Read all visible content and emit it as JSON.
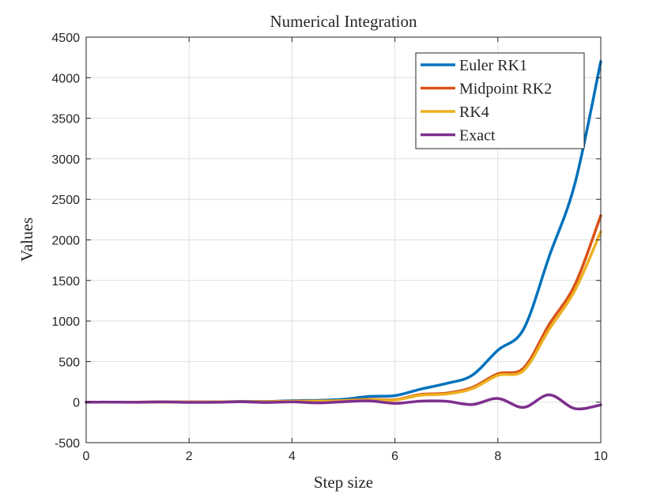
{
  "chart_data": {
    "type": "line",
    "title": "Numerical Integration",
    "xlabel": "Step size",
    "ylabel": "Values",
    "xlim": [
      0,
      10
    ],
    "ylim": [
      -500,
      4500
    ],
    "x_ticks": [
      "0",
      "2",
      "4",
      "6",
      "8",
      "10"
    ],
    "y_ticks": [
      "-500",
      "0",
      "500",
      "1000",
      "1500",
      "2000",
      "2500",
      "3000",
      "3500",
      "4000",
      "4500"
    ],
    "grid": true,
    "legend_position": "top-right",
    "series": [
      {
        "name": "Euler RK1",
        "color": "#0072bd",
        "points": [
          [
            0,
            0
          ],
          [
            0.5,
            0
          ],
          [
            1,
            0
          ],
          [
            1.5,
            2
          ],
          [
            2,
            2
          ],
          [
            2.5,
            2
          ],
          [
            3,
            8
          ],
          [
            3.5,
            8
          ],
          [
            4,
            18
          ],
          [
            4.5,
            22
          ],
          [
            5,
            35
          ],
          [
            5.5,
            70
          ],
          [
            6,
            80
          ],
          [
            6.5,
            160
          ],
          [
            7,
            230
          ],
          [
            7.5,
            330
          ],
          [
            8,
            640
          ],
          [
            8.5,
            900
          ],
          [
            9,
            1800
          ],
          [
            9.5,
            2700
          ],
          [
            10,
            4200
          ]
        ]
      },
      {
        "name": "Midpoint RK2",
        "color": "#d95319",
        "points": [
          [
            0,
            0
          ],
          [
            0.5,
            0
          ],
          [
            1,
            0
          ],
          [
            1.5,
            2
          ],
          [
            2,
            2
          ],
          [
            2.5,
            2
          ],
          [
            3,
            6
          ],
          [
            3.5,
            6
          ],
          [
            4,
            12
          ],
          [
            4.5,
            14
          ],
          [
            5,
            20
          ],
          [
            5.5,
            35
          ],
          [
            6,
            30
          ],
          [
            6.5,
            95
          ],
          [
            7,
            110
          ],
          [
            7.5,
            180
          ],
          [
            8,
            350
          ],
          [
            8.5,
            420
          ],
          [
            9,
            960
          ],
          [
            9.5,
            1450
          ],
          [
            10,
            2300
          ]
        ]
      },
      {
        "name": "RK4",
        "color": "#edb120",
        "points": [
          [
            0,
            0
          ],
          [
            0.5,
            0
          ],
          [
            1,
            0
          ],
          [
            1.5,
            2
          ],
          [
            2,
            2
          ],
          [
            2.5,
            2
          ],
          [
            3,
            6
          ],
          [
            3.5,
            6
          ],
          [
            4,
            10
          ],
          [
            4.5,
            12
          ],
          [
            5,
            18
          ],
          [
            5.5,
            30
          ],
          [
            6,
            25
          ],
          [
            6.5,
            85
          ],
          [
            7,
            100
          ],
          [
            7.5,
            165
          ],
          [
            8,
            330
          ],
          [
            8.5,
            390
          ],
          [
            9,
            900
          ],
          [
            9.5,
            1380
          ],
          [
            10,
            2100
          ]
        ]
      },
      {
        "name": "Exact",
        "color": "#7e2f8e",
        "points": [
          [
            0,
            0
          ],
          [
            0.5,
            0
          ],
          [
            1,
            -2
          ],
          [
            1.5,
            3
          ],
          [
            2,
            -3
          ],
          [
            2.5,
            -2
          ],
          [
            3,
            4
          ],
          [
            3.5,
            -4
          ],
          [
            4,
            3
          ],
          [
            4.5,
            -9
          ],
          [
            5,
            5
          ],
          [
            5.5,
            15
          ],
          [
            6,
            -15
          ],
          [
            6.5,
            12
          ],
          [
            7,
            10
          ],
          [
            7.5,
            -30
          ],
          [
            8,
            45
          ],
          [
            8.5,
            -65
          ],
          [
            9,
            90
          ],
          [
            9.5,
            -80
          ],
          [
            10,
            -35
          ]
        ]
      }
    ]
  }
}
